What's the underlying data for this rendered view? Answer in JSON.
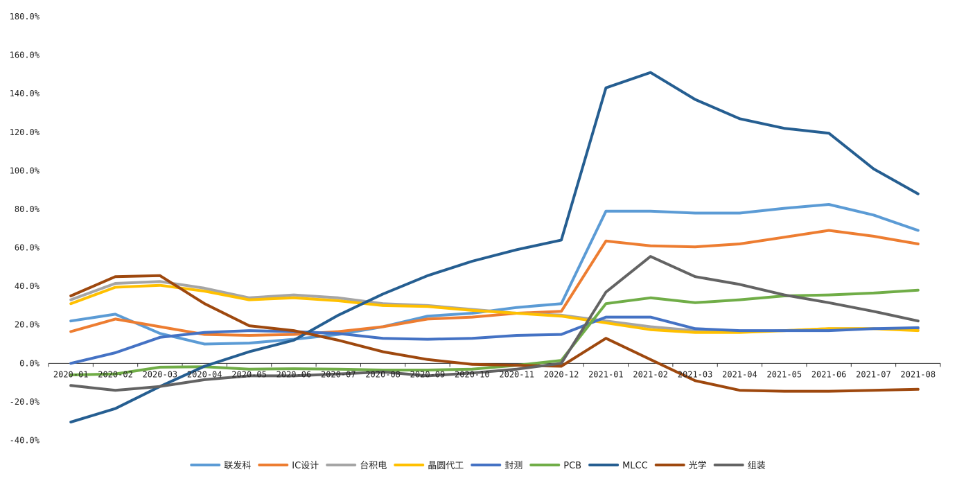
{
  "chart_data": {
    "type": "line",
    "title": "",
    "xlabel": "",
    "ylabel": "",
    "ylim": [
      -0.4,
      1.8
    ],
    "y_ticks": [
      1.8,
      1.6,
      1.4,
      1.2,
      1.0,
      0.8,
      0.6,
      0.4,
      0.2,
      0.0,
      -0.2,
      -0.4
    ],
    "y_tick_labels": [
      "180.0%",
      "160.0%",
      "140.0%",
      "120.0%",
      "100.0%",
      "80.0%",
      "60.0%",
      "40.0%",
      "20.0%",
      "0.0%",
      "-20.0%",
      "-40.0%"
    ],
    "categories": [
      "2020-01",
      "2020-02",
      "2020-03",
      "2020-04",
      "2020-05",
      "2020-06",
      "2020-07",
      "2020-08",
      "2020-09",
      "2020-10",
      "2020-11",
      "2020-12",
      "2021-01",
      "2021-02",
      "2021-03",
      "2021-04",
      "2021-05",
      "2021-06",
      "2021-07",
      "2021-08"
    ],
    "grid": false,
    "legend_position": "bottom",
    "series": [
      {
        "name": "联发科",
        "color": "#5B9BD5",
        "values": [
          0.22,
          0.255,
          0.155,
          0.1,
          0.105,
          0.125,
          0.15,
          0.19,
          0.245,
          0.26,
          0.29,
          0.31,
          0.79,
          0.79,
          0.78,
          0.78,
          0.805,
          0.825,
          0.77,
          0.69
        ]
      },
      {
        "name": "IC设计",
        "color": "#ED7D31",
        "values": [
          0.165,
          0.23,
          0.19,
          0.15,
          0.145,
          0.15,
          0.165,
          0.19,
          0.23,
          0.24,
          0.26,
          0.27,
          0.635,
          0.61,
          0.605,
          0.62,
          0.655,
          0.69,
          0.66,
          0.62
        ]
      },
      {
        "name": "台积电",
        "color": "#A5A5A5",
        "values": [
          0.33,
          0.415,
          0.425,
          0.39,
          0.34,
          0.355,
          0.34,
          0.31,
          0.3,
          0.28,
          0.26,
          0.25,
          0.22,
          0.19,
          0.17,
          0.165,
          0.17,
          0.18,
          0.18,
          0.18
        ]
      },
      {
        "name": "晶圆代工",
        "color": "#FFC000",
        "values": [
          0.31,
          0.395,
          0.405,
          0.375,
          0.33,
          0.34,
          0.325,
          0.3,
          0.295,
          0.275,
          0.26,
          0.245,
          0.21,
          0.175,
          0.16,
          0.16,
          0.17,
          0.18,
          0.18,
          0.17
        ]
      },
      {
        "name": "封测",
        "color": "#4472C4",
        "values": [
          0.0,
          0.055,
          0.135,
          0.16,
          0.17,
          0.165,
          0.155,
          0.13,
          0.125,
          0.13,
          0.145,
          0.15,
          0.24,
          0.24,
          0.18,
          0.17,
          0.17,
          0.17,
          0.18,
          0.185
        ]
      },
      {
        "name": "PCB",
        "color": "#70AD47",
        "values": [
          -0.06,
          -0.055,
          -0.02,
          -0.018,
          -0.03,
          -0.028,
          -0.03,
          -0.035,
          -0.035,
          -0.03,
          -0.01,
          0.015,
          0.31,
          0.34,
          0.315,
          0.33,
          0.35,
          0.355,
          0.365,
          0.38
        ]
      },
      {
        "name": "MLCC",
        "color": "#255E91",
        "values": [
          -0.305,
          -0.235,
          -0.12,
          -0.015,
          0.06,
          0.12,
          0.25,
          0.36,
          0.455,
          0.53,
          0.59,
          0.64,
          1.43,
          1.51,
          1.37,
          1.27,
          1.22,
          1.195,
          1.01,
          0.88
        ]
      },
      {
        "name": "光学",
        "color": "#9E480E",
        "values": [
          0.35,
          0.45,
          0.455,
          0.31,
          0.195,
          0.17,
          0.12,
          0.06,
          0.02,
          -0.005,
          -0.01,
          -0.015,
          0.13,
          0.02,
          -0.09,
          -0.14,
          -0.145,
          -0.145,
          -0.14,
          -0.135
        ]
      },
      {
        "name": "组装",
        "color": "#636363",
        "values": [
          -0.115,
          -0.14,
          -0.12,
          -0.085,
          -0.065,
          -0.065,
          -0.055,
          -0.045,
          -0.065,
          -0.05,
          -0.03,
          0.0,
          0.37,
          0.555,
          0.45,
          0.41,
          0.355,
          0.315,
          0.27,
          0.22
        ]
      }
    ]
  }
}
